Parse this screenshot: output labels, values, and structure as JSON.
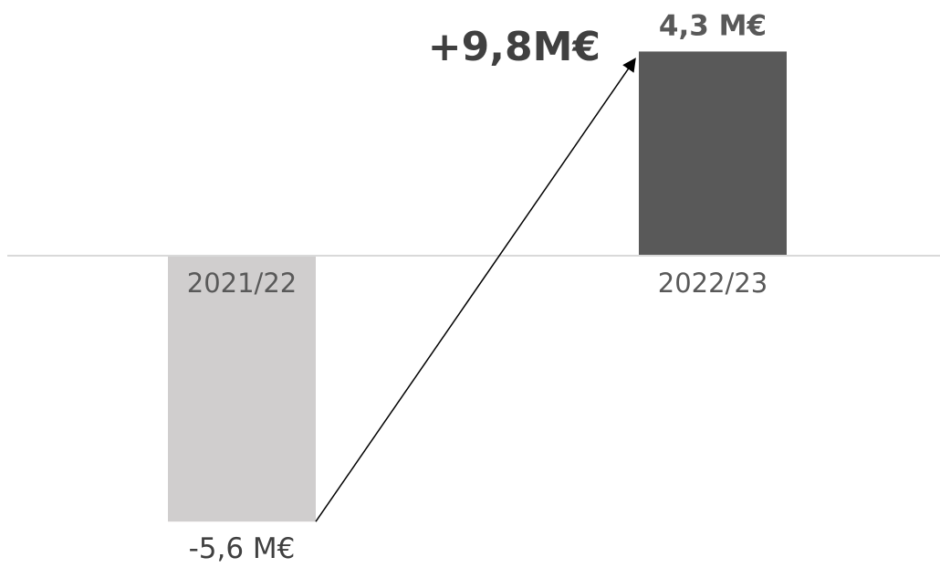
{
  "chart_data": {
    "type": "bar",
    "categories": [
      "2021/22",
      "2022/23"
    ],
    "values": [
      -5.6,
      4.3
    ],
    "value_labels": [
      "-5,6 M€",
      "4,3 M€"
    ],
    "colors": [
      "#d0cece",
      "#595959"
    ],
    "annotation": {
      "text": "+9,8M€",
      "from_category": "2021/22",
      "to_category": "2022/23"
    },
    "axis_color": "#d9d9d9",
    "grid": false,
    "legend": "none"
  }
}
